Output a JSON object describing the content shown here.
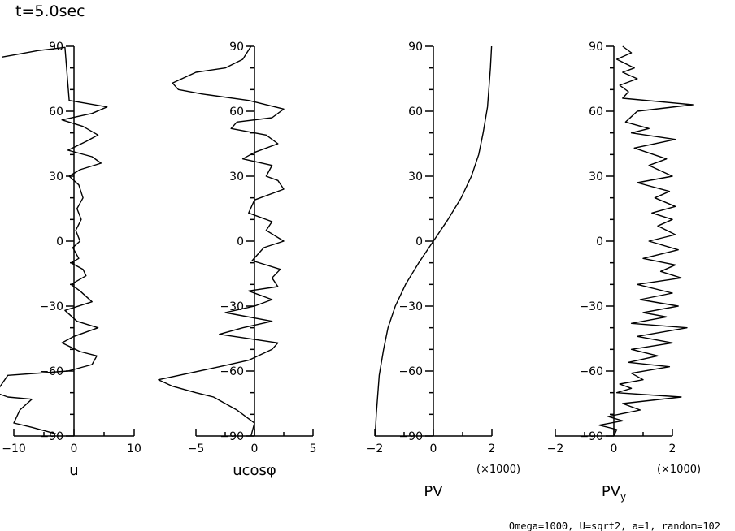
{
  "title": "t=5.0sec",
  "footnote": "Omega=1000, U=sqrt2, a=1, random=102",
  "chart_data": [
    {
      "type": "line",
      "id": "u",
      "xlabel": "u",
      "xlim": [
        -10,
        10
      ],
      "ylim": [
        -90,
        90
      ],
      "x_ticks": [
        -10,
        0,
        10
      ],
      "x_tick_labels": [
        "−10",
        "0",
        "10"
      ],
      "y_ticks": [
        -90,
        -60,
        -30,
        0,
        30,
        60,
        90
      ],
      "y_tick_labels": [
        "−90",
        "−60",
        "−30",
        "0",
        "30",
        "60",
        "90"
      ],
      "series": [
        {
          "name": "u",
          "x": [
            -12,
            -10,
            -6,
            -3,
            -1.5,
            -0.8,
            5.5,
            3,
            -2,
            1.5,
            4,
            2,
            -1,
            3,
            4.5,
            1,
            -0.8,
            0.8,
            1.5,
            0.5,
            1.2,
            0.3,
            1,
            -0.2,
            0.8,
            -0.5,
            1.5,
            2,
            -0.5,
            1,
            3,
            -1.5,
            0.5,
            4,
            0,
            -2,
            1,
            3.8,
            3,
            -1,
            -11,
            -13,
            -11,
            -7,
            -9,
            -10,
            -7,
            -3
          ],
          "y": [
            85,
            86,
            88,
            89,
            89.5,
            65,
            62,
            59,
            56,
            53,
            49,
            46,
            42,
            39,
            36,
            33,
            30,
            26,
            20,
            15,
            10,
            5,
            0,
            -3,
            -8,
            -10,
            -13,
            -16,
            -20,
            -23,
            -28,
            -32,
            -37,
            -40,
            -44,
            -47,
            -51,
            -53,
            -57,
            -60,
            -62,
            -70,
            -72,
            -73,
            -78,
            -84,
            -86,
            -89
          ]
        }
      ]
    },
    {
      "type": "line",
      "id": "ucos",
      "xlabel": "ucosφ",
      "xlim": [
        -5,
        5
      ],
      "ylim": [
        -90,
        90
      ],
      "x_ticks": [
        -5,
        0,
        5
      ],
      "x_tick_labels": [
        "−5",
        "0",
        "5"
      ],
      "y_ticks": [
        -90,
        -60,
        -30,
        0,
        30,
        60,
        90
      ],
      "y_tick_labels": [
        "−90",
        "−60",
        "−30",
        "0",
        "30",
        "60",
        "90"
      ],
      "series": [
        {
          "name": "ucosφ",
          "x": [
            -0.3,
            -1,
            -2.5,
            -5,
            -7,
            -6.5,
            -4.5,
            -0.5,
            2.5,
            1.5,
            -1.5,
            -2,
            1,
            2,
            0,
            -1,
            1.5,
            1,
            2,
            2.5,
            0,
            -0.5,
            1.5,
            1,
            2.5,
            0.8,
            -0.2,
            2.2,
            1.5,
            2,
            -0.5,
            1.5,
            0,
            -2.5,
            1.5,
            -1,
            -3,
            2,
            1.5,
            -0.5,
            -3,
            -8.2,
            -7,
            -5,
            -3.5,
            -1.5,
            0,
            -0.3
          ],
          "y": [
            90,
            84,
            80,
            78,
            73,
            70,
            68,
            65,
            61,
            57,
            55,
            52,
            49,
            45,
            41,
            38,
            35,
            30,
            28,
            24,
            19,
            13,
            9,
            5,
            0,
            -3,
            -9,
            -13,
            -17,
            -21,
            -23,
            -27,
            -30,
            -33,
            -37,
            -40,
            -43,
            -47,
            -50,
            -55,
            -58,
            -64,
            -67,
            -70,
            -72,
            -78,
            -84,
            -90
          ]
        }
      ]
    },
    {
      "type": "line",
      "id": "pv",
      "xlabel": "PV",
      "scale_note": "(×1000)",
      "xlim": [
        -2,
        2
      ],
      "ylim": [
        -90,
        90
      ],
      "x_ticks": [
        -2,
        0,
        2
      ],
      "x_tick_labels": [
        "−2",
        "0",
        "2"
      ],
      "y_ticks": [
        -90,
        -60,
        -30,
        0,
        30,
        60,
        90
      ],
      "y_tick_labels": [
        "−90",
        "−60",
        "−30",
        "0",
        "30",
        "60",
        "90"
      ],
      "series": [
        {
          "name": "PV",
          "x": [
            -1.99,
            -1.95,
            -1.85,
            -1.7,
            -1.55,
            -1.3,
            -0.95,
            -0.5,
            0,
            0.5,
            0.95,
            1.3,
            1.55,
            1.7,
            1.85,
            1.95,
            1.99
          ],
          "y": [
            -90,
            -80,
            -62,
            -50,
            -40,
            -30,
            -20,
            -10,
            0,
            10,
            20,
            30,
            40,
            50,
            62,
            80,
            90
          ]
        }
      ]
    },
    {
      "type": "line",
      "id": "pvy",
      "xlabel": "PV",
      "xlabel_sub": "y",
      "scale_note": "(×1000)",
      "xlim": [
        -2,
        2
      ],
      "ylim": [
        -90,
        90
      ],
      "x_ticks": [
        -2,
        0,
        2
      ],
      "x_tick_labels": [
        "−2",
        "0",
        "2"
      ],
      "y_ticks": [
        -90,
        -60,
        -30,
        0,
        30,
        60,
        90
      ],
      "y_tick_labels": [
        "−90",
        "−60",
        "−30",
        "0",
        "30",
        "60",
        "90"
      ],
      "series": [
        {
          "name": "PVy",
          "x": [
            0.3,
            0.6,
            0.1,
            0.7,
            0.3,
            0.8,
            0.2,
            0.5,
            0.3,
            2.7,
            0.8,
            0.4,
            1.2,
            0.6,
            2.1,
            0.7,
            1.8,
            1.2,
            2.0,
            0.8,
            1.9,
            1.4,
            2.1,
            1.3,
            2.0,
            1.5,
            2.1,
            1.2,
            2.2,
            1.0,
            2.1,
            1.6,
            2.3,
            0.8,
            2.0,
            0.9,
            2.2,
            1.0,
            1.8,
            0.6,
            2.5,
            0.8,
            2.0,
            0.6,
            1.5,
            0.5,
            1.9,
            0.6,
            1.0,
            0.2,
            0.6,
            0.1,
            2.3,
            0.3,
            0.9,
            -0.2,
            0.3,
            -0.5,
            0.1,
            0
          ],
          "y": [
            90,
            87,
            84,
            80,
            78,
            75,
            72,
            69,
            66,
            63,
            60,
            55,
            52,
            50,
            47,
            43,
            38,
            35,
            30,
            27,
            23,
            20,
            16,
            13,
            10,
            7,
            3,
            0,
            -4,
            -8,
            -11,
            -14,
            -17,
            -20,
            -24,
            -27,
            -30,
            -33,
            -35,
            -38,
            -40,
            -44,
            -47,
            -50,
            -53,
            -56,
            -58,
            -61,
            -64,
            -66,
            -68,
            -70,
            -72,
            -75,
            -78,
            -81,
            -83,
            -85,
            -87,
            -90
          ]
        }
      ]
    }
  ]
}
